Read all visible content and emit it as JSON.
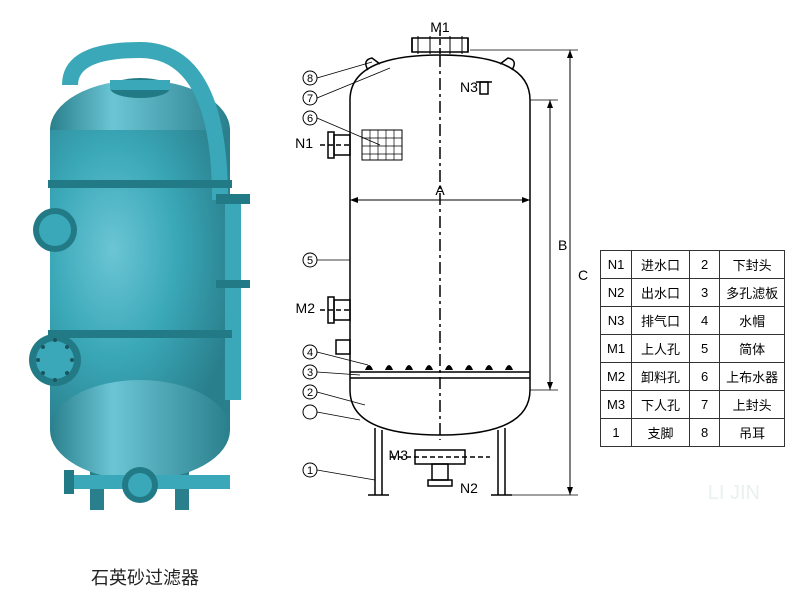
{
  "title": "石英砂过滤器",
  "photo": {
    "tank_color": "#3aa8b8",
    "tank_shadow": "#2a7f8c",
    "tank_highlight": "#6bc5d4",
    "flange_color": "#237a87",
    "tank_width": 180,
    "tank_height": 380,
    "dome_height": 50
  },
  "diagram": {
    "stroke_color": "#000000",
    "stroke_width": 1.5,
    "body_width": 180,
    "body_height": 280,
    "dims_A": "A",
    "dims_B": "B",
    "dims_C": "C",
    "labels": {
      "M1": "M1",
      "M2": "M2",
      "M3": "M3",
      "N1": "N1",
      "N2": "N2",
      "N3": "N3"
    },
    "callouts": [
      "1",
      "2",
      "3",
      "4",
      "5",
      "6",
      "7",
      "8"
    ]
  },
  "legend": {
    "rows": [
      {
        "k1": "N1",
        "v1": "进水口",
        "k2": "2",
        "v2": "下封头"
      },
      {
        "k1": "N2",
        "v1": "出水口",
        "k2": "3",
        "v2": "多孔滤板"
      },
      {
        "k1": "N3",
        "v1": "排气口",
        "k2": "4",
        "v2": "水帽"
      },
      {
        "k1": "M1",
        "v1": "上人孔",
        "k2": "5",
        "v2": "简体"
      },
      {
        "k1": "M2",
        "v1": "卸料孔",
        "k2": "6",
        "v2": "上布水器"
      },
      {
        "k1": "M3",
        "v1": "下人孔",
        "k2": "7",
        "v2": "上封头"
      },
      {
        "k1": "1",
        "v1": "支脚",
        "k2": "8",
        "v2": "吊耳"
      }
    ]
  },
  "watermark_text": "LI JIN"
}
